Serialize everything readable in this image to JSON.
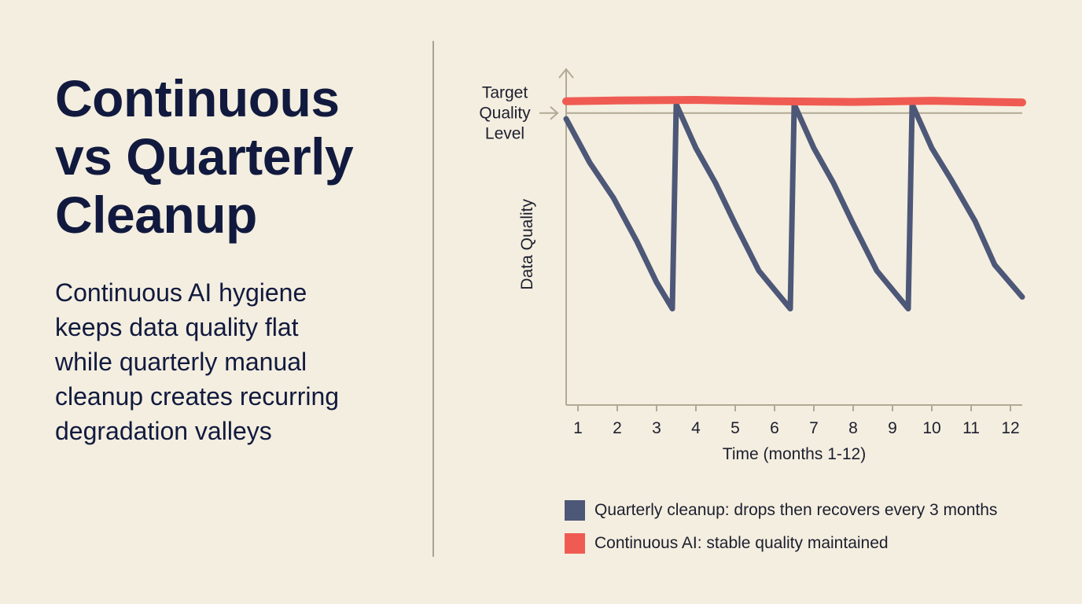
{
  "headline": {
    "lines": [
      "Continuous",
      "vs Quarterly",
      "Cleanup"
    ]
  },
  "description": {
    "lines": [
      "Continuous AI hygiene",
      "keeps data quality flat",
      "while quarterly manual",
      "cleanup creates recurring",
      "degradation valleys"
    ]
  },
  "colors": {
    "background": "#f4eee0",
    "quarterly": "#4d5777",
    "continuous": "#ef5b52",
    "axis": "#b0a994",
    "text": "#111a3e"
  },
  "chart_data": {
    "type": "line",
    "xlabel": "Time (months 1-12)",
    "ylabel": "Data Quality",
    "x_ticks": [
      "1",
      "2",
      "3",
      "4",
      "5",
      "6",
      "7",
      "8",
      "9",
      "10",
      "11",
      "12"
    ],
    "xlim": [
      0.7,
      12.3
    ],
    "ylim": [
      0,
      115
    ],
    "target": {
      "label_lines": [
        "Target",
        "Quality",
        "Level"
      ],
      "value": 100
    },
    "series": [
      {
        "name": "Quarterly cleanup: drops then recovers every 3 months",
        "color": "#4d5777",
        "points": [
          [
            0.7,
            98
          ],
          [
            1.3,
            83
          ],
          [
            1.9,
            71
          ],
          [
            2.5,
            56
          ],
          [
            3.0,
            42
          ],
          [
            3.4,
            33
          ],
          [
            3.5,
            103
          ],
          [
            4.0,
            88
          ],
          [
            4.5,
            76
          ],
          [
            5.0,
            62
          ],
          [
            5.6,
            46
          ],
          [
            6.4,
            33
          ],
          [
            6.5,
            103
          ],
          [
            7.0,
            88
          ],
          [
            7.5,
            76
          ],
          [
            8.0,
            62
          ],
          [
            8.6,
            46
          ],
          [
            9.4,
            33
          ],
          [
            9.5,
            103
          ],
          [
            10.0,
            88
          ],
          [
            10.5,
            77
          ],
          [
            11.1,
            63
          ],
          [
            11.6,
            48
          ],
          [
            12.3,
            37
          ]
        ]
      },
      {
        "name": "Continuous AI: stable quality maintained",
        "color": "#ef5b52",
        "points": [
          [
            0.7,
            104
          ],
          [
            2.0,
            104.3
          ],
          [
            4.0,
            104.5
          ],
          [
            6.0,
            104
          ],
          [
            8.0,
            103.8
          ],
          [
            10.0,
            104.2
          ],
          [
            12.3,
            103.6
          ]
        ]
      }
    ]
  }
}
